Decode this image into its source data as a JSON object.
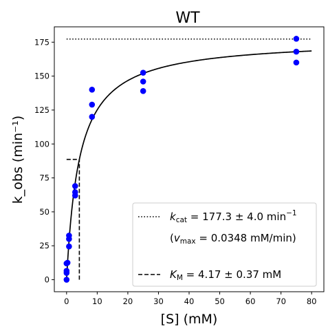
{
  "chart_data": {
    "type": "scatter",
    "title": "WT",
    "xlabel": "[S] (mM)",
    "ylabel": "k_obs (min⁻¹)",
    "xlim": [
      -4,
      84
    ],
    "ylim": [
      -8.85,
      186.3
    ],
    "x_ticks": [
      0,
      10,
      20,
      30,
      40,
      50,
      60,
      70,
      80
    ],
    "y_ticks": [
      0,
      25,
      50,
      75,
      100,
      125,
      150,
      175
    ],
    "grid": false,
    "legend_position": "lower-right",
    "colors": {
      "points": "#0000ff",
      "lines": "#000000"
    },
    "series": [
      {
        "kind": "points",
        "x": [
          0,
          0,
          0,
          0,
          0.3,
          0.8,
          0.8,
          0.8,
          2.8,
          2.8,
          2.8,
          8.3,
          8.3,
          8.3,
          25,
          25,
          25,
          75,
          75,
          75
        ],
        "y": [
          0,
          5,
          6.5,
          12,
          12.5,
          24.5,
          30,
          32.5,
          62,
          64.5,
          69,
          120,
          129,
          140,
          139,
          146,
          152.5,
          160,
          168,
          177.5
        ]
      },
      {
        "kind": "fit",
        "model": "michaelis-menten",
        "kcat": 177.3,
        "km": 4.17,
        "x_range": [
          0,
          80
        ]
      },
      {
        "kind": "kcat-line",
        "y": 177.3,
        "x_range": [
          0,
          80
        ],
        "style": "dotted"
      },
      {
        "kind": "km-line",
        "x": 4.17,
        "y_range": [
          0,
          88.65
        ],
        "style": "dashed"
      }
    ],
    "legend": {
      "kcat_symbol": "k",
      "kcat_sub": "cat",
      "kcat_value": " = 177.3 ± 4.0 min",
      "kcat_unit_sup": "−1",
      "vmax_open": "(",
      "vmax_symbol": "v",
      "vmax_sub": "max",
      "vmax_value": " = 0.0348 mM/min)",
      "km_symbol": "K",
      "km_sub": "M",
      "km_value": " = 4.17 ± 0.37 mM"
    }
  }
}
